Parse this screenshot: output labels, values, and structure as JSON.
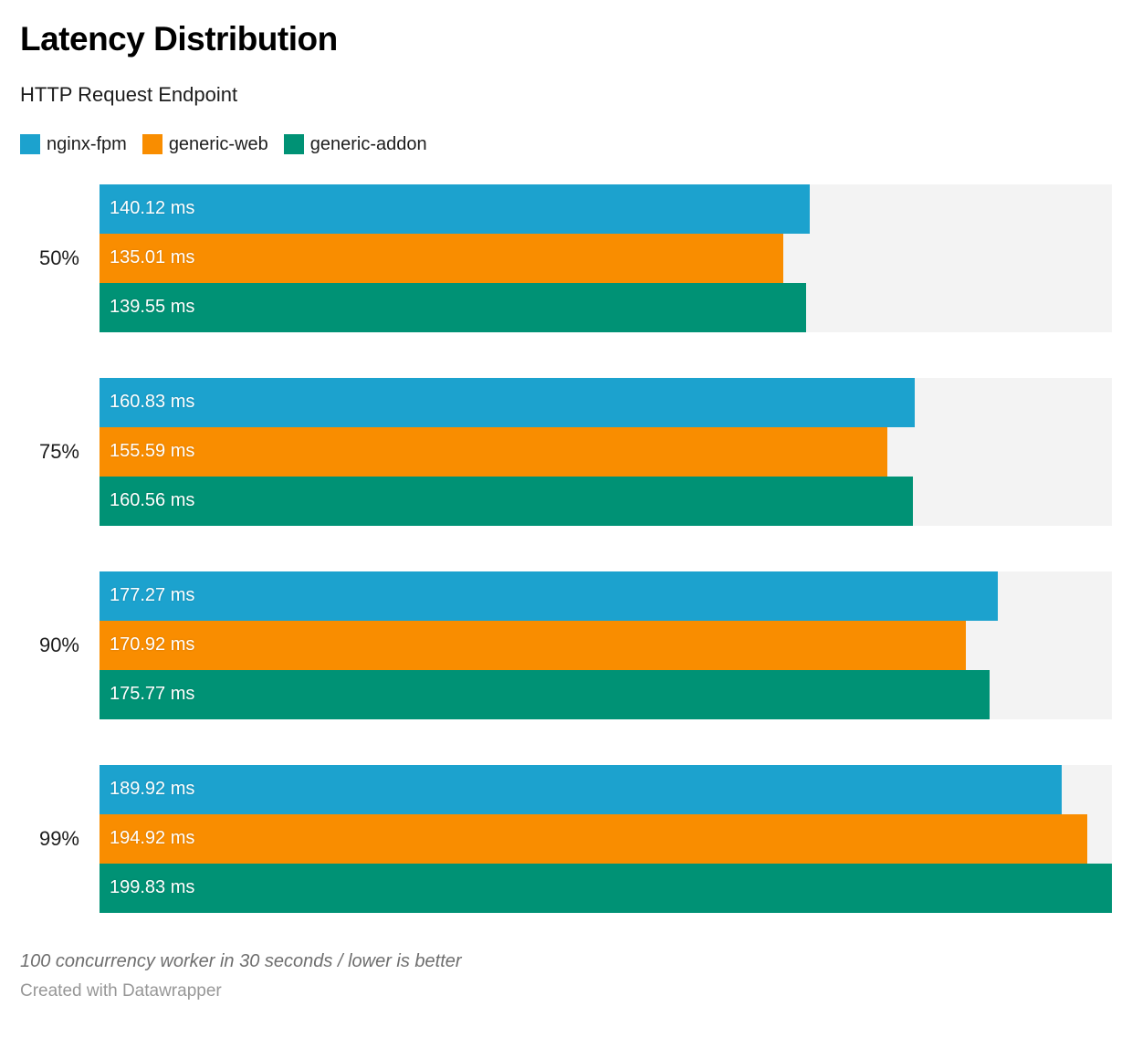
{
  "chart_data": {
    "type": "bar",
    "orientation": "horizontal",
    "title": "Latency Distribution",
    "subtitle": "HTTP Request Endpoint",
    "categories": [
      "50%",
      "75%",
      "90%",
      "99%"
    ],
    "series": [
      {
        "name": "nginx-fpm",
        "color": "#1ca2ce",
        "values": [
          140.12,
          160.83,
          177.27,
          189.92
        ]
      },
      {
        "name": "generic-web",
        "color": "#f98d00",
        "values": [
          135.01,
          155.59,
          170.92,
          194.92
        ]
      },
      {
        "name": "generic-addon",
        "color": "#009275",
        "values": [
          139.55,
          160.56,
          175.77,
          199.83
        ]
      }
    ],
    "value_suffix": " ms",
    "value_decimals": 2,
    "xlim": [
      0,
      199.83
    ],
    "grid": false,
    "legend_position": "top",
    "track_color": "#f3f3f3",
    "value_labels_inside": true
  },
  "footer": {
    "note": "100 concurrency worker in 30 seconds / lower is better",
    "credit": "Created with Datawrapper"
  }
}
